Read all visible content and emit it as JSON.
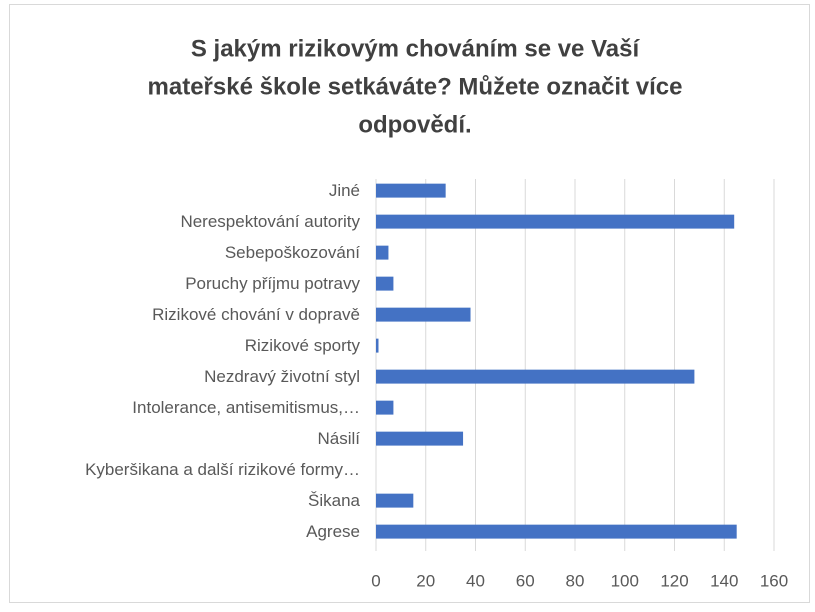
{
  "chart_data": {
    "type": "barh",
    "title": [
      "S jakým rizikovým chováním se ve Vaší",
      "mateřské škole setkáváte? Můžete označit více",
      "odpovědí."
    ],
    "categories": [
      "Jiné",
      "Nerespektování autority",
      "Sebepoškozování",
      "Poruchy příjmu potravy",
      "Rizikové chování v dopravě",
      "Rizikové sporty",
      "Nezdravý životní styl",
      "Intolerance, antisemitismus,…",
      "Násilí",
      "Kyberšikana a další rizikové formy…",
      "Šikana",
      "Agrese"
    ],
    "values": [
      28,
      144,
      5,
      7,
      38,
      1,
      128,
      7,
      35,
      0,
      15,
      145
    ],
    "color": "#4472c4",
    "xlim": [
      0,
      160
    ],
    "xticks": [
      0,
      20,
      40,
      60,
      80,
      100,
      120,
      140,
      160
    ],
    "grid": true
  }
}
